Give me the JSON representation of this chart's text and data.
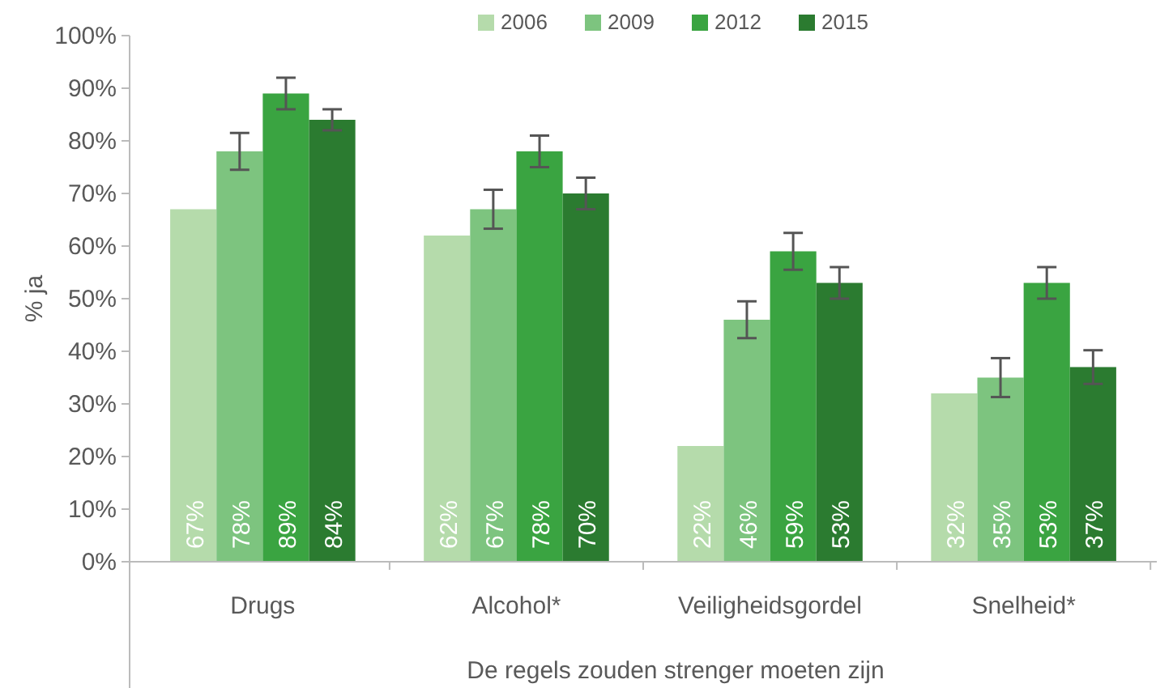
{
  "chart_data": {
    "type": "bar",
    "ylabel": "% ja",
    "xlabel": "De regels zouden strenger moeten zijn",
    "categories": [
      "Drugs",
      "Alcohol*",
      "Veiligheidsgordel",
      "Snelheid*"
    ],
    "series": [
      {
        "name": "2006",
        "color": "#b5dbab",
        "values": [
          67,
          62,
          22,
          32
        ],
        "value_labels": [
          "67%",
          "62%",
          "22%",
          "32%"
        ]
      },
      {
        "name": "2009",
        "color": "#7dc47f",
        "values": [
          78,
          67,
          46,
          35
        ],
        "value_labels": [
          "78%",
          "67%",
          "46%",
          "35%"
        ],
        "errors": [
          3.5,
          3.7,
          3.5,
          3.7
        ]
      },
      {
        "name": "2012",
        "color": "#3aa441",
        "values": [
          89,
          78,
          59,
          53
        ],
        "value_labels": [
          "89%",
          "78%",
          "59%",
          "53%"
        ],
        "errors": [
          3,
          3,
          3.5,
          3
        ]
      },
      {
        "name": "2015",
        "color": "#2b7b30",
        "values": [
          84,
          70,
          53,
          37
        ],
        "value_labels": [
          "84%",
          "70%",
          "53%",
          "37%"
        ],
        "errors": [
          2,
          3,
          3,
          3.2
        ]
      }
    ],
    "ylim": [
      0,
      100
    ],
    "yticks": [
      {
        "value": 0,
        "label": "0%"
      },
      {
        "value": 10,
        "label": "10%"
      },
      {
        "value": 20,
        "label": "20%"
      },
      {
        "value": 30,
        "label": "30%"
      },
      {
        "value": 40,
        "label": "40%"
      },
      {
        "value": 50,
        "label": "50%"
      },
      {
        "value": 60,
        "label": "60%"
      },
      {
        "value": 70,
        "label": "70%"
      },
      {
        "value": 80,
        "label": "80%"
      },
      {
        "value": 90,
        "label": "90%"
      },
      {
        "value": 100,
        "label": "100%"
      }
    ],
    "legend": "top"
  }
}
